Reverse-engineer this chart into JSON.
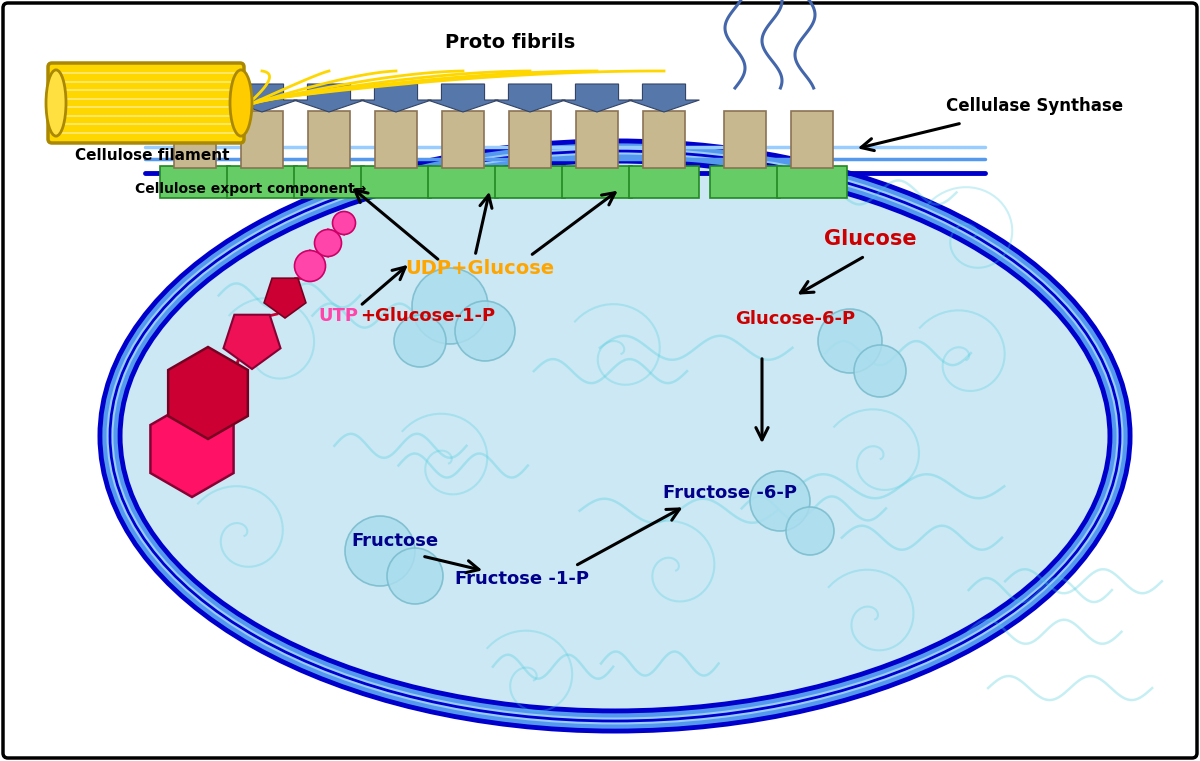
{
  "bg_color": "#ffffff",
  "cell_fill_color": "#cce8f4",
  "cell_border_dark": "#0000cc",
  "cell_border_mid": "#4488ff",
  "cell_border_light": "#88ccff",
  "filament_label": "Cellulose filament",
  "export_label": "Cellulose export component→",
  "protofibrils_label": "Proto fibrils",
  "cellulase_label": "Cellulase Synthase",
  "udp_glucose_label": "UDP+Glucose",
  "utp_label": "UTP",
  "utp_plus": "+",
  "glucose1p_label": "Glucose-1-P",
  "glucose_label": "Glucose",
  "glucose6p_label": "Glucose-6-P",
  "fructose_label": "Fructose",
  "fructose1p_label": "Fructose -1-P",
  "fructose6p_label": "Fructose -6-P",
  "udp_color": "#ffa500",
  "utp_color": "#ff44aa",
  "glucose1p_color": "#cc0000",
  "glucose_color": "#cc0000",
  "glucose6p_color": "#cc0000",
  "fructose_color": "#00008b",
  "arrow_color": "#000000",
  "filament_gold": "#ffd700",
  "filament_dark": "#cc9900",
  "synthase_tan": "#c8b890",
  "synthase_green": "#66cc66",
  "arrow_blue": "#5577aa",
  "wavy_blue": "#4466aa",
  "bubble_fill": "#aaddee",
  "bubble_edge": "#77bbcc",
  "swirl_color": "#44ccdd"
}
